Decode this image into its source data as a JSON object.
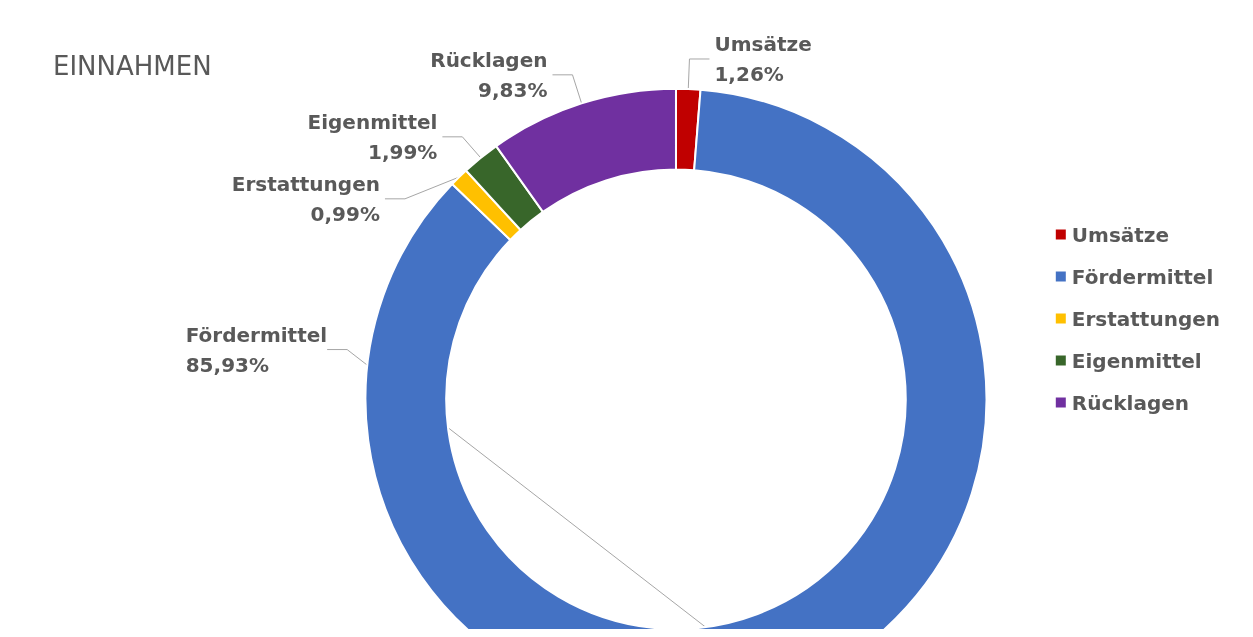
{
  "chart_data": {
    "type": "donut",
    "title": "EINNAHMEN",
    "categories": [
      "Umsätze",
      "Fördermittel",
      "Erstattungen",
      "Eigenmittel",
      "Rücklagen"
    ],
    "values": [
      1.26,
      85.93,
      0.99,
      1.99,
      9.83
    ],
    "value_labels": [
      "1,26%",
      "85,93%",
      "0,99%",
      "1,99%",
      "9,83%"
    ],
    "colors": [
      "#c00000",
      "#4472c4",
      "#ffc000",
      "#38662a",
      "#7030a0"
    ],
    "legend": "right"
  }
}
